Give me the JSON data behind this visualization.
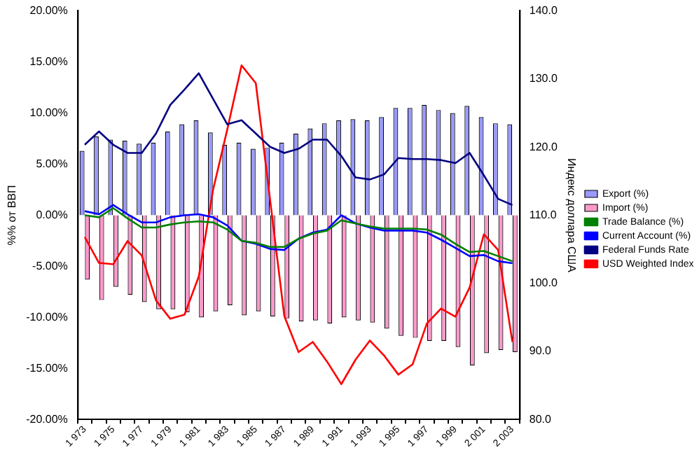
{
  "chart_data": {
    "type": "bar",
    "ylabel": "%% от ВВП",
    "y2label": "Индекс доллара США",
    "categories": [
      "1 973",
      null,
      "1 975",
      null,
      "1 977",
      null,
      "1 979",
      null,
      "1 981",
      null,
      "1 983",
      null,
      "1 985",
      null,
      "1 987",
      null,
      "1 989",
      null,
      "1 991",
      null,
      "1 993",
      null,
      "1 995",
      null,
      "1 997",
      null,
      "1 999",
      null,
      "2 001",
      null,
      "2 003"
    ],
    "series": [
      {
        "name": "Export (%)",
        "color": "#9999ff",
        "values": [
          6.3,
          7.7,
          7.4,
          7.3,
          7.0,
          7.1,
          8.2,
          8.9,
          9.3,
          8.1,
          6.9,
          7.1,
          6.5,
          6.6,
          7.1,
          8.0,
          8.5,
          9.0,
          9.3,
          9.4,
          9.3,
          9.6,
          10.5,
          10.5,
          10.8,
          10.3,
          10.0,
          10.7,
          9.6,
          9.0,
          8.9
        ]
      },
      {
        "name": "Import (%)",
        "color": "#ff99cc",
        "values": [
          -6.3,
          -8.3,
          -7.0,
          -7.8,
          -8.5,
          -9.2,
          -9.2,
          -9.5,
          -10.0,
          -9.4,
          -8.8,
          -9.8,
          -9.4,
          -9.9,
          -10.1,
          -10.4,
          -10.3,
          -10.6,
          -10.0,
          -10.3,
          -10.5,
          -11.1,
          -11.8,
          -12.0,
          -12.3,
          -12.3,
          -12.9,
          -14.7,
          -13.5,
          -13.2,
          -13.4
        ]
      },
      {
        "name": "Trade Balance (%)",
        "type": "line",
        "color": "#008000",
        "values": [
          0.0,
          -0.2,
          0.7,
          -0.3,
          -1.2,
          -1.2,
          -0.9,
          -0.7,
          -0.6,
          -0.7,
          -1.4,
          -2.5,
          -2.7,
          -3.1,
          -3.1,
          -2.3,
          -1.8,
          -1.5,
          -0.5,
          -0.8,
          -1.1,
          -1.3,
          -1.3,
          -1.3,
          -1.4,
          -1.9,
          -2.8,
          -3.6,
          -3.5,
          -4.0,
          -4.5
        ]
      },
      {
        "name": "Current Account (%)",
        "type": "line",
        "color": "#0000ff",
        "values": [
          0.4,
          0.1,
          1.0,
          0.1,
          -0.7,
          -0.7,
          -0.2,
          0.0,
          0.1,
          -0.2,
          -1.0,
          -2.5,
          -2.8,
          -3.3,
          -3.4,
          -2.3,
          -1.7,
          -1.4,
          0.0,
          -0.8,
          -1.2,
          -1.5,
          -1.5,
          -1.5,
          -1.7,
          -2.4,
          -3.2,
          -4.0,
          -3.9,
          -4.5,
          -4.7
        ]
      },
      {
        "name": "Federal Funds Rate",
        "type": "line",
        "color": "#000080",
        "values": [
          6.9,
          8.2,
          6.9,
          6.1,
          6.1,
          8.0,
          10.8,
          12.3,
          13.9,
          11.4,
          8.9,
          9.3,
          8.0,
          6.7,
          6.1,
          6.5,
          7.4,
          7.4,
          5.8,
          3.7,
          3.5,
          4.0,
          5.6,
          5.5,
          5.5,
          5.4,
          5.1,
          6.1,
          3.9,
          1.6,
          1.0
        ]
      },
      {
        "name": "USD Weighted Index",
        "type": "line",
        "axis": "y2",
        "color": "#ff0000",
        "values": [
          106.8,
          103.0,
          102.8,
          106.2,
          104.1,
          97.5,
          94.8,
          95.4,
          101.0,
          113.7,
          122.6,
          132.0,
          129.4,
          112.3,
          95.2,
          89.9,
          91.4,
          88.5,
          85.2,
          88.8,
          91.6,
          89.4,
          86.6,
          88.1,
          94.1,
          96.3,
          95.1,
          99.4,
          107.2,
          104.9,
          91.4
        ]
      }
    ],
    "ylim": [
      -20,
      20
    ],
    "yticks": [
      {
        "value": -20,
        "label": "-20.00%"
      },
      {
        "value": -15,
        "label": "-15.00%"
      },
      {
        "value": -10,
        "label": "-10.00%"
      },
      {
        "value": -5,
        "label": "-5.00%"
      },
      {
        "value": 0,
        "label": "0.00%"
      },
      {
        "value": 5,
        "label": "5.00%"
      },
      {
        "value": 10,
        "label": "10.00%"
      },
      {
        "value": 15,
        "label": "15.00%"
      },
      {
        "value": 20,
        "label": "20.00%"
      }
    ],
    "y2lim": [
      80,
      140
    ],
    "y2ticks": [
      {
        "value": 80,
        "label": "80.0"
      },
      {
        "value": 90,
        "label": "90.0"
      },
      {
        "value": 100,
        "label": "100.0"
      },
      {
        "value": 110,
        "label": "110.0"
      },
      {
        "value": 120,
        "label": "120.0"
      },
      {
        "value": 130,
        "label": "130.0"
      },
      {
        "value": 140,
        "label": "140.0"
      }
    ],
    "grid": false,
    "legend": "right",
    "marker": "none",
    "line_style": "solid"
  }
}
